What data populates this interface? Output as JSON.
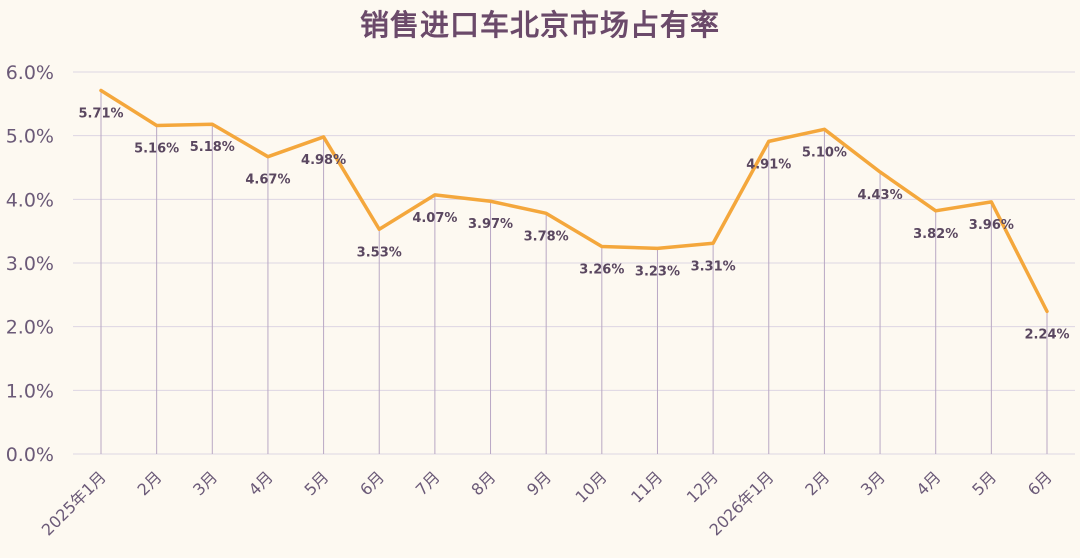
{
  "chart_data": {
    "type": "line",
    "title": "销售进口车北京市场占有率",
    "xlabel": "",
    "ylabel": "",
    "categories": [
      "2025年1月",
      "2月",
      "3月",
      "4月",
      "5月",
      "6月",
      "7月",
      "8月",
      "9月",
      "10月",
      "11月",
      "12月",
      "2026年1月",
      "2月",
      "3月",
      "4月",
      "5月",
      "6月"
    ],
    "series": [
      {
        "values": [
          5.71,
          5.16,
          5.18,
          4.67,
          4.98,
          3.53,
          4.07,
          3.97,
          3.78,
          3.26,
          3.23,
          3.31,
          4.91,
          5.1,
          4.43,
          3.82,
          3.96,
          2.24
        ],
        "data_labels": [
          "5.71%",
          "5.16%",
          "5.18%",
          "4.67%",
          "4.98%",
          "3.53%",
          "4.07%",
          "3.97%",
          "3.78%",
          "3.26%",
          "3.23%",
          "3.31%",
          "4.91%",
          "5.10%",
          "4.43%",
          "3.82%",
          "3.96%",
          "2.24%"
        ],
        "color": "#f4a73c"
      }
    ],
    "ylim": [
      0,
      6.0
    ],
    "yticks": [
      0,
      1,
      2,
      3,
      4,
      5,
      6
    ],
    "ytick_labels": [
      "0.0%",
      "1.0%",
      "2.0%",
      "3.0%",
      "4.0%",
      "5.0%",
      "6.0%"
    ],
    "grid": true,
    "drop_lines": true,
    "colors": {
      "background": "#fdf9f1",
      "title": "#6b4a6a",
      "grid": "#ddd6e3",
      "drop_line": "#b9a8c4",
      "axis_text": "#6b5a78",
      "data_label": "#5a4760"
    }
  }
}
